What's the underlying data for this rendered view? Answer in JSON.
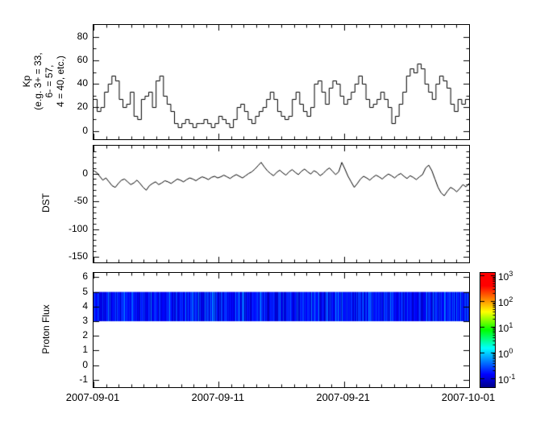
{
  "figure": {
    "background": "#ffffff",
    "line_color": "#000000"
  },
  "x_axis": {
    "tick_labels": [
      "2007-09-01",
      "2007-09-11",
      "2007-09-21",
      "2007-10-01"
    ],
    "major_positions_days": [
      0,
      10,
      20,
      30
    ],
    "minor_step_days": 1,
    "span_days": 30,
    "x_range": [
      "2007-09-01",
      "2007-10-01"
    ]
  },
  "chart_data": [
    {
      "type": "line",
      "name": "Kp",
      "style": "step",
      "ylabel": "Kp\n(e.g. 3+ = 33,\n6- = 57,\n4 = 40, etc.)",
      "ylim": [
        -7,
        90
      ],
      "yticks": [
        80,
        60,
        40,
        20,
        0
      ],
      "y_minor_step": 10,
      "x_range": [
        "2007-09-01",
        "2007-10-01"
      ],
      "line_color": "#000000",
      "values": [
        27,
        17,
        20,
        33,
        40,
        47,
        43,
        27,
        20,
        23,
        33,
        13,
        10,
        27,
        30,
        33,
        20,
        43,
        47,
        30,
        23,
        17,
        7,
        3,
        7,
        10,
        7,
        3,
        7,
        7,
        10,
        7,
        3,
        7,
        13,
        10,
        7,
        3,
        10,
        20,
        23,
        17,
        10,
        7,
        13,
        17,
        20,
        27,
        33,
        27,
        17,
        13,
        10,
        13,
        27,
        33,
        23,
        17,
        13,
        20,
        40,
        43,
        33,
        23,
        37,
        43,
        40,
        30,
        23,
        27,
        33,
        40,
        47,
        40,
        27,
        20,
        23,
        27,
        33,
        27,
        20,
        7,
        13,
        23,
        33,
        47,
        53,
        50,
        57,
        53,
        40,
        33,
        27,
        40,
        47,
        43,
        37,
        23,
        17,
        27,
        23,
        27
      ]
    },
    {
      "type": "line",
      "name": "DST",
      "style": "line",
      "ylabel": "DST",
      "ylim": [
        -160,
        50
      ],
      "yticks": [
        0,
        -50,
        -100,
        -150
      ],
      "y_minor_step": 10,
      "x_range": [
        "2007-09-01",
        "2007-10-01"
      ],
      "line_color": "#000000",
      "values": [
        5,
        2,
        -5,
        -12,
        -8,
        -15,
        -22,
        -25,
        -18,
        -12,
        -10,
        -15,
        -20,
        -17,
        -12,
        -18,
        -25,
        -30,
        -22,
        -18,
        -15,
        -20,
        -17,
        -13,
        -15,
        -18,
        -14,
        -10,
        -12,
        -15,
        -11,
        -8,
        -10,
        -13,
        -9,
        -6,
        -8,
        -11,
        -7,
        -5,
        -8,
        -6,
        -3,
        -6,
        -9,
        -5,
        -2,
        -5,
        -8,
        -4,
        0,
        3,
        8,
        14,
        20,
        12,
        5,
        0,
        -4,
        2,
        6,
        1,
        -3,
        3,
        7,
        2,
        -2,
        4,
        8,
        3,
        -1,
        5,
        2,
        -4,
        0,
        6,
        10,
        4,
        -2,
        3,
        20,
        8,
        -5,
        -15,
        -25,
        -18,
        -10,
        -5,
        -8,
        -12,
        -7,
        -3,
        -6,
        -10,
        -5,
        -1,
        -4,
        -8,
        -3,
        0,
        -5,
        -9,
        -4,
        -7,
        -11,
        -6,
        -2,
        10,
        15,
        5,
        -10,
        -25,
        -35,
        -40,
        -32,
        -25,
        -28,
        -33,
        -27,
        -20,
        -24,
        -18
      ]
    },
    {
      "type": "heatmap",
      "name": "Proton Flux",
      "ylabel": "Proton Flux",
      "ylim": [
        -1.5,
        6.3
      ],
      "yticks": [
        6,
        5,
        4,
        3,
        2,
        1,
        0,
        -1
      ],
      "x_range": [
        "2007-09-01",
        "2007-10-01"
      ],
      "band": {
        "energy_low": 3,
        "energy_high": 5,
        "log10_flux_min": -1.2,
        "log10_flux_max": -0.4
      },
      "colorbar": {
        "tick_base": "10",
        "tick_exponents": [
          3,
          2,
          1,
          0,
          -1
        ],
        "log_range": [
          -1.35,
          3.1
        ],
        "colormap": "jet"
      }
    }
  ]
}
